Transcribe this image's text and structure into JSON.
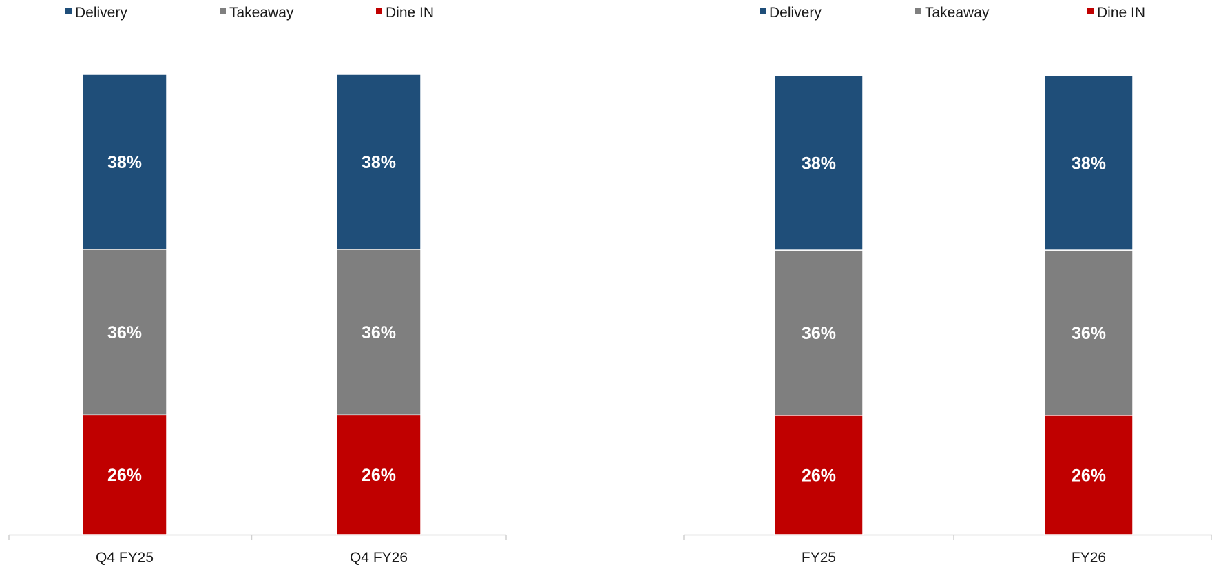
{
  "chart_data": [
    {
      "type": "bar",
      "stacked": true,
      "percent": true,
      "categories": [
        "Q4 FY25",
        "Q4 FY26"
      ],
      "series": [
        {
          "name": "Dine IN",
          "color": "#C00000",
          "values": [
            26,
            26
          ],
          "labels": [
            "26%",
            "26%"
          ]
        },
        {
          "name": "Takeaway",
          "color": "#7F7F7F",
          "values": [
            36,
            36
          ],
          "labels": [
            "36%",
            "36%"
          ]
        },
        {
          "name": "Delivery",
          "color": "#1F4E79",
          "values": [
            38,
            38
          ],
          "labels": [
            "38%",
            "38%"
          ]
        }
      ],
      "legend": {
        "position": "top",
        "order": [
          "Delivery",
          "Takeaway",
          "Dine IN"
        ]
      },
      "ylim": [
        0,
        100
      ],
      "grid": false,
      "title": "",
      "xlabel": "",
      "ylabel": ""
    },
    {
      "type": "bar",
      "stacked": true,
      "percent": true,
      "categories": [
        "FY25",
        "FY26"
      ],
      "series": [
        {
          "name": "Dine IN",
          "color": "#C00000",
          "values": [
            26,
            26
          ],
          "labels": [
            "26%",
            "26%"
          ]
        },
        {
          "name": "Takeaway",
          "color": "#7F7F7F",
          "values": [
            36,
            36
          ],
          "labels": [
            "36%",
            "36%"
          ]
        },
        {
          "name": "Delivery",
          "color": "#1F4E79",
          "values": [
            38,
            38
          ],
          "labels": [
            "38%",
            "38%"
          ]
        }
      ],
      "legend": {
        "position": "top",
        "order": [
          "Delivery",
          "Takeaway",
          "Dine IN"
        ]
      },
      "ylim": [
        0,
        100
      ],
      "grid": false,
      "title": "",
      "xlabel": "",
      "ylabel": ""
    }
  ]
}
